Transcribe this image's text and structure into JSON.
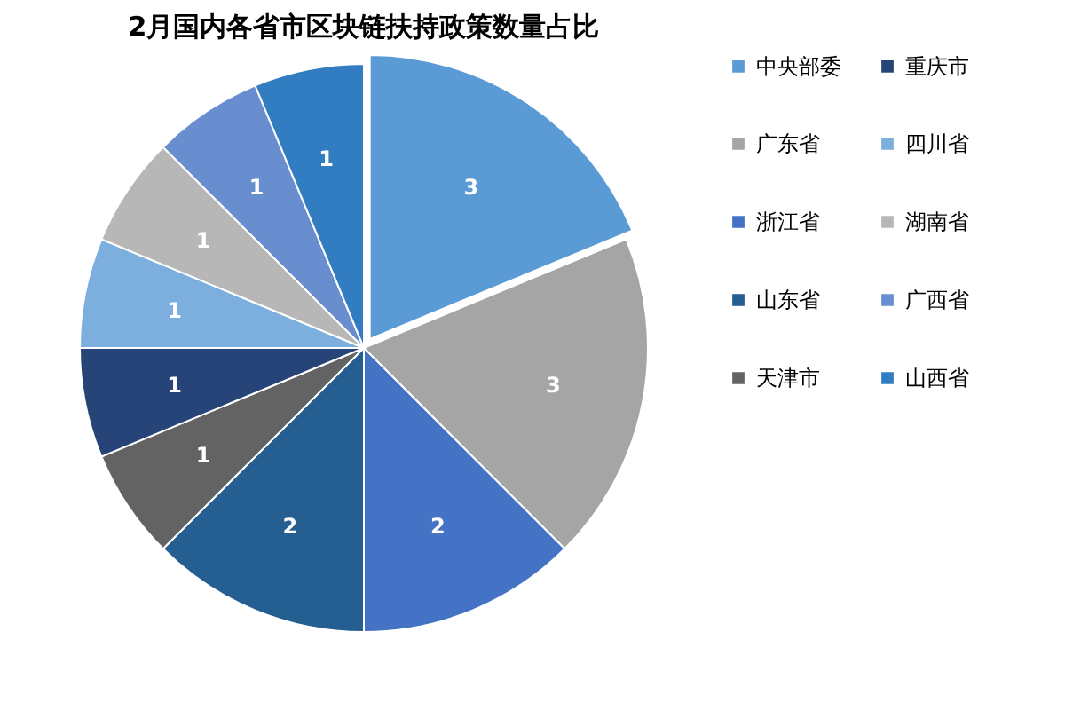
{
  "chart_data": {
    "type": "pie",
    "title": "2月国内各省市区块链扶持政策数量占比",
    "categories": [
      "中央部委",
      "广东省",
      "浙江省",
      "山东省",
      "天津市",
      "重庆市",
      "四川省",
      "湖南省",
      "广西省",
      "山西省"
    ],
    "values": [
      3,
      3,
      2,
      2,
      1,
      1,
      1,
      1,
      1,
      1
    ],
    "colors": [
      "#5b9bd5",
      "#a5a5a5",
      "#4472c4",
      "#255e91",
      "#636363",
      "#264478",
      "#7cafdd",
      "#b7b7b7",
      "#698ed0",
      "#327dc2"
    ],
    "data_labels": true,
    "legend": "right"
  }
}
